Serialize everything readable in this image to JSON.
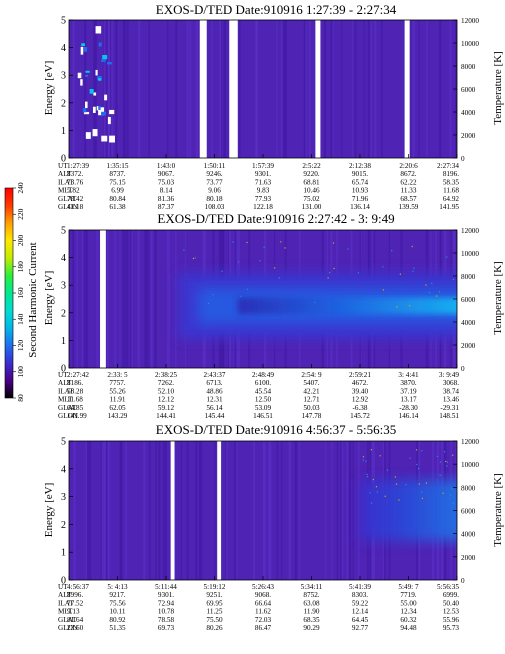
{
  "colorbar": {
    "label": "Second Harmonic Current",
    "ticks": [
      "80",
      "100",
      "120",
      "140",
      "160",
      "180",
      "200",
      "220",
      "240"
    ],
    "colors": [
      "#000000",
      "#4b0086",
      "#3a2fd0",
      "#1e6ef0",
      "#00b7e8",
      "#00ddd0",
      "#00e890",
      "#2af03a",
      "#c4ec00",
      "#ffe800",
      "#ffa000",
      "#ff3a00",
      "#ff0000"
    ]
  },
  "panels": [
    {
      "title": "EXOS-D/TED   Date:910916   1:27:39 - 2:27:34",
      "ylabel_left": "Energy [eV]",
      "ylabel_right": "Temperature [K]",
      "y_ticks": [
        "0",
        "1",
        "2",
        "3",
        "4",
        "5"
      ],
      "right_ticks": [
        "0",
        "2000",
        "4000",
        "6000",
        "8000",
        "10000",
        "12000"
      ],
      "eph_labels": [
        "UT",
        "ALT",
        "ILAT",
        "MLT",
        "GLAT",
        "GLON"
      ],
      "eph_cols": [
        [
          "1:27:39",
          "8372.",
          "73.76",
          "5.82",
          "78.42",
          "41.18"
        ],
        [
          "1:35:15",
          "8737.",
          "75.15",
          "6.99",
          "80.84",
          "61.38"
        ],
        [
          "1:43:0",
          "9067.",
          "75.03",
          "8.14",
          "81.36",
          "87.37"
        ],
        [
          "1:50:11",
          "9246.",
          "73.77",
          "9.06",
          "80.18",
          "108.03"
        ],
        [
          "1:57:39",
          "9301.",
          "71.63",
          "9.83",
          "77.93",
          "122.18"
        ],
        [
          "2:5:22",
          "9220.",
          "68.81",
          "10.46",
          "75.02",
          "131.00"
        ],
        [
          "2:12:38",
          "9015.",
          "65.74",
          "10.93",
          "71.96",
          "136.14"
        ],
        [
          "2:20:6",
          "8672.",
          "62.22",
          "11.33",
          "68.57",
          "139.59"
        ],
        [
          "2:27:34",
          "8196.",
          "58.35",
          "11.68",
          "64.92",
          "141.95"
        ]
      ]
    },
    {
      "title": "EXOS-D/TED   Date:910916   2:27:42 - 3: 9:49",
      "ylabel_left": "Energy [eV]",
      "ylabel_right": "Temperature [K]",
      "y_ticks": [
        "0",
        "1",
        "2",
        "3",
        "4",
        "5"
      ],
      "right_ticks": [
        "0",
        "2000",
        "4000",
        "6000",
        "8000",
        "10000",
        "12000"
      ],
      "eph_labels": [
        "UT",
        "ALT",
        "ILAT",
        "MLT",
        "GLAT",
        "GLON"
      ],
      "eph_cols": [
        [
          "2:27:42",
          "8186.",
          "58.28",
          "11.68",
          "64.85",
          "141.99"
        ],
        [
          "2:33: 5",
          "7757.",
          "55.26",
          "11.91",
          "62.05",
          "143.29"
        ],
        [
          "2:38:25",
          "7262.",
          "52.10",
          "12.12",
          "59.12",
          "144.41"
        ],
        [
          "2:43:37",
          "6713.",
          "48.86",
          "12.31",
          "56.14",
          "145.44"
        ],
        [
          "2:48:49",
          "6100.",
          "45.54",
          "12.50",
          "53.09",
          "146.51"
        ],
        [
          "2:54: 9",
          "5407.",
          "42.21",
          "12.71",
          "50.03",
          "147.78"
        ],
        [
          "2:59:21",
          "4672.",
          "39.40",
          "12.92",
          "-6.38",
          "145.72"
        ],
        [
          "3: 4:41",
          "3870.",
          "37.19",
          "13.17",
          "-28.30",
          "146.14"
        ],
        [
          "3: 9:49",
          "3068.",
          "38.74",
          "13.46",
          "-29.31",
          "148.51"
        ]
      ]
    },
    {
      "title": "EXOS-D/TED   Date:910916   4:56:37 - 5:56:35",
      "ylabel_left": "Energy [eV]",
      "ylabel_right": "Temperature [K]",
      "y_ticks": [
        "0",
        "1",
        "2",
        "3",
        "4",
        "5"
      ],
      "right_ticks": [
        "0",
        "2000",
        "4000",
        "6000",
        "8000",
        "10000",
        "12000"
      ],
      "eph_labels": [
        "UT",
        "ALT",
        "ILAT",
        "MLT",
        "GLAT",
        "GLON"
      ],
      "eph_cols": [
        [
          "4:56:37",
          "8996.",
          "77.52",
          "9.13",
          "81.64",
          "23.60"
        ],
        [
          "5: 4:13",
          "9217.",
          "75.56",
          "10.11",
          "80.92",
          "51.35"
        ],
        [
          "5:11:44",
          "9301.",
          "72.94",
          "10.78",
          "78.58",
          "69.73"
        ],
        [
          "5:19:12",
          "9251.",
          "69.95",
          "11.25",
          "75.50",
          "80.26"
        ],
        [
          "5:26:43",
          "9068.",
          "66.64",
          "11.62",
          "72.03",
          "86.47"
        ],
        [
          "5:34:11",
          "8752.",
          "63.08",
          "11.90",
          "68.35",
          "90.29"
        ],
        [
          "5:41:39",
          "8303.",
          "59.22",
          "12.14",
          "64.45",
          "92.77"
        ],
        [
          "5:49: 7",
          "7719.",
          "55.00",
          "12.34",
          "60.32",
          "94.48"
        ],
        [
          "5:56:35",
          "6999.",
          "50.40",
          "12.53",
          "55.96",
          "95.73"
        ]
      ]
    }
  ],
  "chart_data": [
    {
      "type": "heatmap",
      "title": "EXOS-D/TED   Date:910916   1:27:39 - 2:27:34",
      "xlabel": "UT",
      "ylabel": "Energy [eV]",
      "ylabel_right": "Temperature [K]",
      "ylim": [
        0,
        5
      ],
      "ylim_right": [
        0,
        12000
      ],
      "x_ticks": [
        "1:27:39",
        "1:35:15",
        "1:43:0",
        "1:50:11",
        "1:57:39",
        "2:5:22",
        "2:12:38",
        "2:20:6",
        "2:27:34"
      ],
      "background_level": "100",
      "colorbar_ticks": [
        80,
        100,
        120,
        140,
        160,
        180,
        200,
        220,
        240
      ],
      "data_gaps": [
        [
          0.337,
          0.355
        ],
        [
          0.413,
          0.435
        ],
        [
          0.635,
          0.648
        ],
        [
          0.865,
          0.878
        ]
      ],
      "features": [
        {
          "kind": "white-blobs",
          "x_range": [
            0.02,
            0.11
          ],
          "y_range": [
            0.8,
            4.8
          ],
          "value": "240+"
        },
        {
          "kind": "cyan-patches",
          "x_range": [
            0.03,
            0.1
          ],
          "y_range": [
            1.5,
            4.3
          ],
          "value": "160"
        }
      ]
    },
    {
      "type": "heatmap",
      "title": "EXOS-D/TED   Date:910916   2:27:42 - 3: 9:49",
      "xlabel": "UT",
      "ylabel": "Energy [eV]",
      "ylabel_right": "Temperature [K]",
      "ylim": [
        0,
        5
      ],
      "ylim_right": [
        0,
        12000
      ],
      "x_ticks": [
        "2:27:42",
        "2:33: 5",
        "2:38:25",
        "2:43:37",
        "2:48:49",
        "2:54: 9",
        "2:59:21",
        "3: 4:41",
        "3: 9:49"
      ],
      "background_level": "100",
      "colorbar_ticks": [
        80,
        100,
        120,
        140,
        160,
        180,
        200,
        220,
        240
      ],
      "data_gaps": [
        [
          0.08,
          0.095
        ]
      ],
      "features": [
        {
          "kind": "emission-band",
          "x_range": [
            0.28,
            1.0
          ],
          "y_center": [
            2.0,
            2.5
          ],
          "peak_value": "160-180"
        }
      ]
    },
    {
      "type": "heatmap",
      "title": "EXOS-D/TED   Date:910916   4:56:37 - 5:56:35",
      "xlabel": "UT",
      "ylabel": "Energy [eV]",
      "ylabel_right": "Temperature [K]",
      "ylim": [
        0,
        5
      ],
      "ylim_right": [
        0,
        12000
      ],
      "x_ticks": [
        "4:56:37",
        "5: 4:13",
        "5:11:44",
        "5:19:12",
        "5:26:43",
        "5:34:11",
        "5:41:39",
        "5:49: 7",
        "5:56:35"
      ],
      "background_level": "100",
      "colorbar_ticks": [
        80,
        100,
        120,
        140,
        160,
        180,
        200,
        220,
        240
      ],
      "data_gaps": [
        [
          0.262,
          0.272
        ],
        [
          0.382,
          0.392
        ]
      ],
      "features": [
        {
          "kind": "emission-band",
          "x_range": [
            0.75,
            1.0
          ],
          "y_center": [
            2.0,
            3.0
          ],
          "peak_value": "130"
        }
      ]
    }
  ]
}
